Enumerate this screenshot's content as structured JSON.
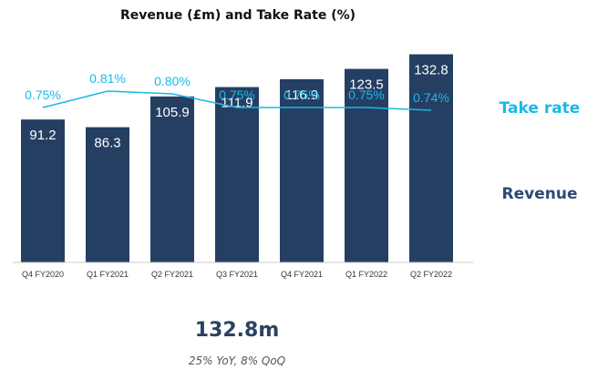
{
  "chart_data": {
    "type": "bar",
    "title": "Revenue (£m) and Take Rate (%)",
    "categories": [
      "Q4 FY2020",
      "Q1 FY2021",
      "Q2 FY2021",
      "Q3 FY2021",
      "Q4 FY2021",
      "Q1 FY2022",
      "Q2 FY2022"
    ],
    "series": [
      {
        "name": "Revenue",
        "type": "bar",
        "values": [
          91.2,
          86.3,
          105.9,
          111.9,
          116.9,
          123.5,
          132.8
        ],
        "labels": [
          "91.2",
          "86.3",
          "105.9",
          "111.9",
          "116.9",
          "123.5",
          "132.8"
        ]
      },
      {
        "name": "Take rate",
        "type": "line",
        "values": [
          0.75,
          0.81,
          0.8,
          0.75,
          0.75,
          0.75,
          0.74
        ],
        "labels": [
          "0.75%",
          "0.81%",
          "0.80%",
          "0.75%",
          "0.75%",
          "0.75%",
          "0.74%"
        ]
      }
    ],
    "ylim": [
      0,
      150
    ],
    "xlabel": "",
    "ylabel": "",
    "grid": false,
    "legend_position": "right"
  },
  "colors": {
    "bar": "#253f63",
    "line": "#1ab8e8",
    "revenue_legend": "#2a4a72",
    "axis": "#cccccc"
  },
  "headline": {
    "value": "132.8m",
    "sub": "25% YoY, 8% QoQ"
  }
}
